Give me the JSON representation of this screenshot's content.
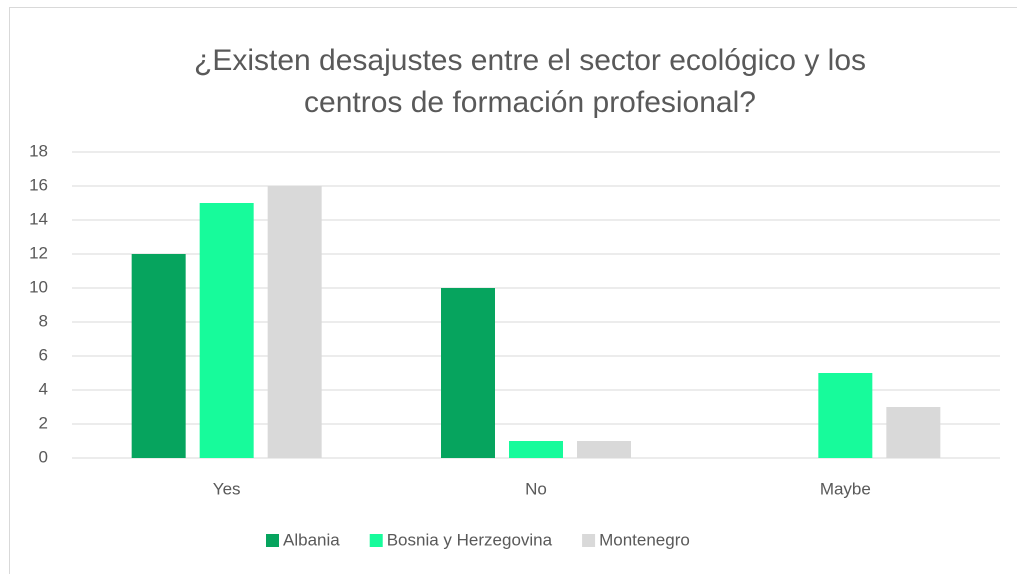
{
  "chart_data": {
    "type": "bar",
    "title": "¿Existen desajustes entre el sector ecológico y los centros de formación profesional?",
    "categories": [
      "Yes",
      "No",
      "Maybe"
    ],
    "series": [
      {
        "name": "Albania",
        "color": "#06a45e",
        "values": [
          12,
          10,
          0
        ]
      },
      {
        "name": "Bosnia y Herzegovina",
        "color": "#17fb9b",
        "values": [
          15,
          1,
          5
        ]
      },
      {
        "name": "Montenegro",
        "color": "#d9d9d9",
        "values": [
          16,
          1,
          3
        ]
      }
    ],
    "ylim": [
      0,
      18
    ],
    "yticks": [
      0,
      2,
      4,
      6,
      8,
      10,
      12,
      14,
      16,
      18
    ],
    "grid": true,
    "legend": "bottom"
  }
}
